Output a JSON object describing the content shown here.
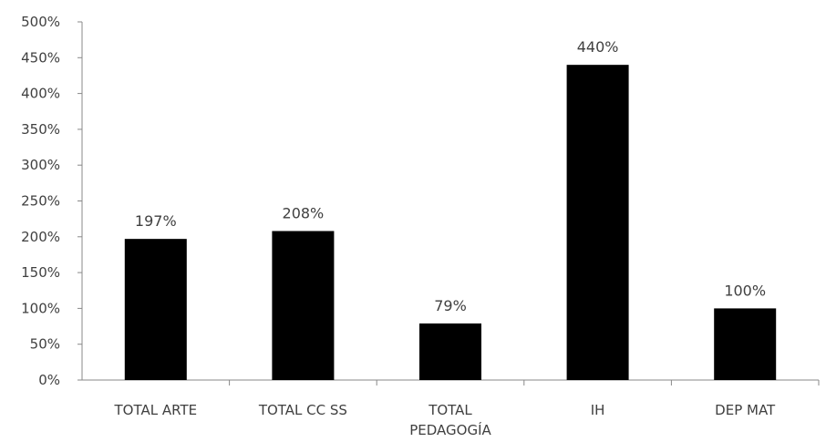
{
  "chart_data": {
    "type": "bar",
    "categories": [
      [
        "TOTAL ARTE"
      ],
      [
        "TOTAL CC SS"
      ],
      [
        "TOTAL",
        "PEDAGOGÍA"
      ],
      [
        "IH"
      ],
      [
        "DEP MAT"
      ]
    ],
    "values": [
      197,
      208,
      79,
      440,
      100
    ],
    "data_labels": [
      "197%",
      "208%",
      "79%",
      "440%",
      "100%"
    ],
    "ylim": [
      0,
      500
    ],
    "y_ticks": [
      "0%",
      "50%",
      "100%",
      "150%",
      "200%",
      "250%",
      "300%",
      "350%",
      "400%",
      "450%",
      "500%"
    ],
    "bar_color": "#000000",
    "grid": false,
    "legend": "none"
  }
}
